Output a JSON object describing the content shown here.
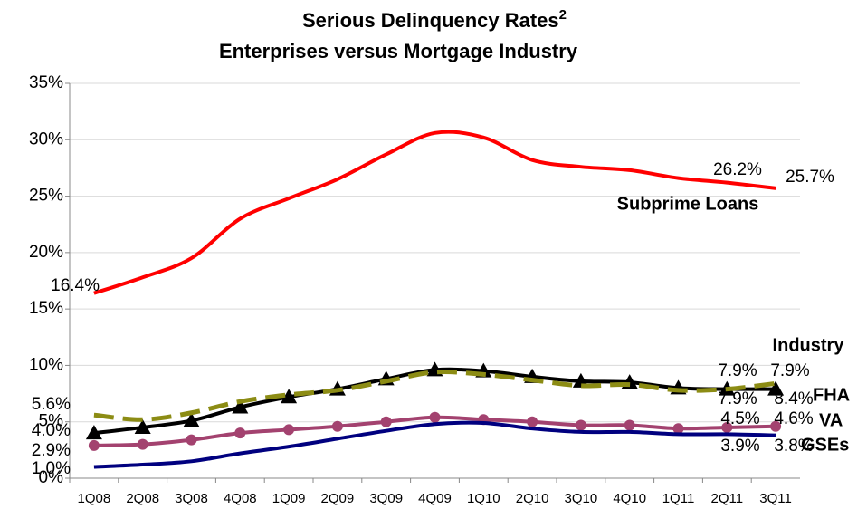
{
  "chart_data": {
    "type": "line",
    "title": "Serious Delinquency Rates",
    "title_note": "2",
    "subtitle": "Enterprises versus Mortgage Industry",
    "categories": [
      "1Q08",
      "2Q08",
      "3Q08",
      "4Q08",
      "1Q09",
      "2Q09",
      "3Q09",
      "4Q09",
      "1Q10",
      "2Q10",
      "3Q10",
      "4Q10",
      "1Q11",
      "2Q11",
      "3Q11"
    ],
    "ylim": [
      0,
      35
    ],
    "yticks": [
      {
        "value": 0,
        "label": "0%"
      },
      {
        "value": 5,
        "label": "5%"
      },
      {
        "value": 10,
        "label": "10%"
      },
      {
        "value": 15,
        "label": "15%"
      },
      {
        "value": 20,
        "label": "20%"
      },
      {
        "value": 25,
        "label": "25%"
      },
      {
        "value": 30,
        "label": "30%"
      },
      {
        "value": 35,
        "label": "35%"
      }
    ],
    "grid": true,
    "series": [
      {
        "name": "Subprime Loans",
        "color": "#ff0000",
        "marker": "none",
        "dashed": false,
        "values": [
          16.4,
          17.8,
          19.5,
          23.0,
          24.8,
          26.5,
          28.7,
          30.6,
          30.2,
          28.2,
          27.6,
          27.3,
          26.6,
          26.2,
          25.7
        ],
        "value_labels": [
          "16.4%",
          null,
          null,
          null,
          null,
          null,
          null,
          null,
          null,
          null,
          null,
          null,
          null,
          "26.2%",
          "25.7%"
        ]
      },
      {
        "name": "Industry",
        "color": "#000000",
        "marker": "triangle",
        "dashed": false,
        "values": [
          4.0,
          4.5,
          5.1,
          6.3,
          7.2,
          7.9,
          8.8,
          9.6,
          9.5,
          9.0,
          8.6,
          8.5,
          8.0,
          7.9,
          7.9
        ],
        "value_labels": [
          "4.0%",
          null,
          null,
          null,
          null,
          null,
          null,
          null,
          null,
          null,
          null,
          null,
          null,
          "7.9%",
          "7.9%"
        ]
      },
      {
        "name": "FHA",
        "color": "#8c8c14",
        "marker": "none",
        "dashed": true,
        "values": [
          5.6,
          5.2,
          5.8,
          6.8,
          7.4,
          7.8,
          8.6,
          9.4,
          9.2,
          8.7,
          8.2,
          8.3,
          7.8,
          7.9,
          8.4
        ],
        "value_labels": [
          "5.6%",
          null,
          null,
          null,
          null,
          null,
          null,
          null,
          null,
          null,
          null,
          null,
          null,
          "7.9%",
          "8.4%"
        ]
      },
      {
        "name": "VA",
        "color": "#a3426f",
        "marker": "circle",
        "dashed": false,
        "values": [
          2.9,
          3.0,
          3.4,
          4.0,
          4.3,
          4.6,
          5.0,
          5.4,
          5.2,
          5.0,
          4.7,
          4.7,
          4.4,
          4.5,
          4.6
        ],
        "value_labels": [
          "2.9%",
          null,
          null,
          null,
          null,
          null,
          null,
          null,
          null,
          null,
          null,
          null,
          null,
          "4.5%",
          "4.6%"
        ]
      },
      {
        "name": "GSEs",
        "color": "#00007f",
        "marker": "none",
        "dashed": false,
        "values": [
          1.0,
          1.2,
          1.5,
          2.2,
          2.8,
          3.5,
          4.2,
          4.8,
          4.9,
          4.4,
          4.1,
          4.1,
          3.9,
          3.9,
          3.8
        ],
        "value_labels": [
          "1.0%",
          null,
          null,
          null,
          null,
          null,
          null,
          null,
          null,
          null,
          null,
          null,
          null,
          "3.9%",
          "3.8%"
        ]
      }
    ]
  }
}
